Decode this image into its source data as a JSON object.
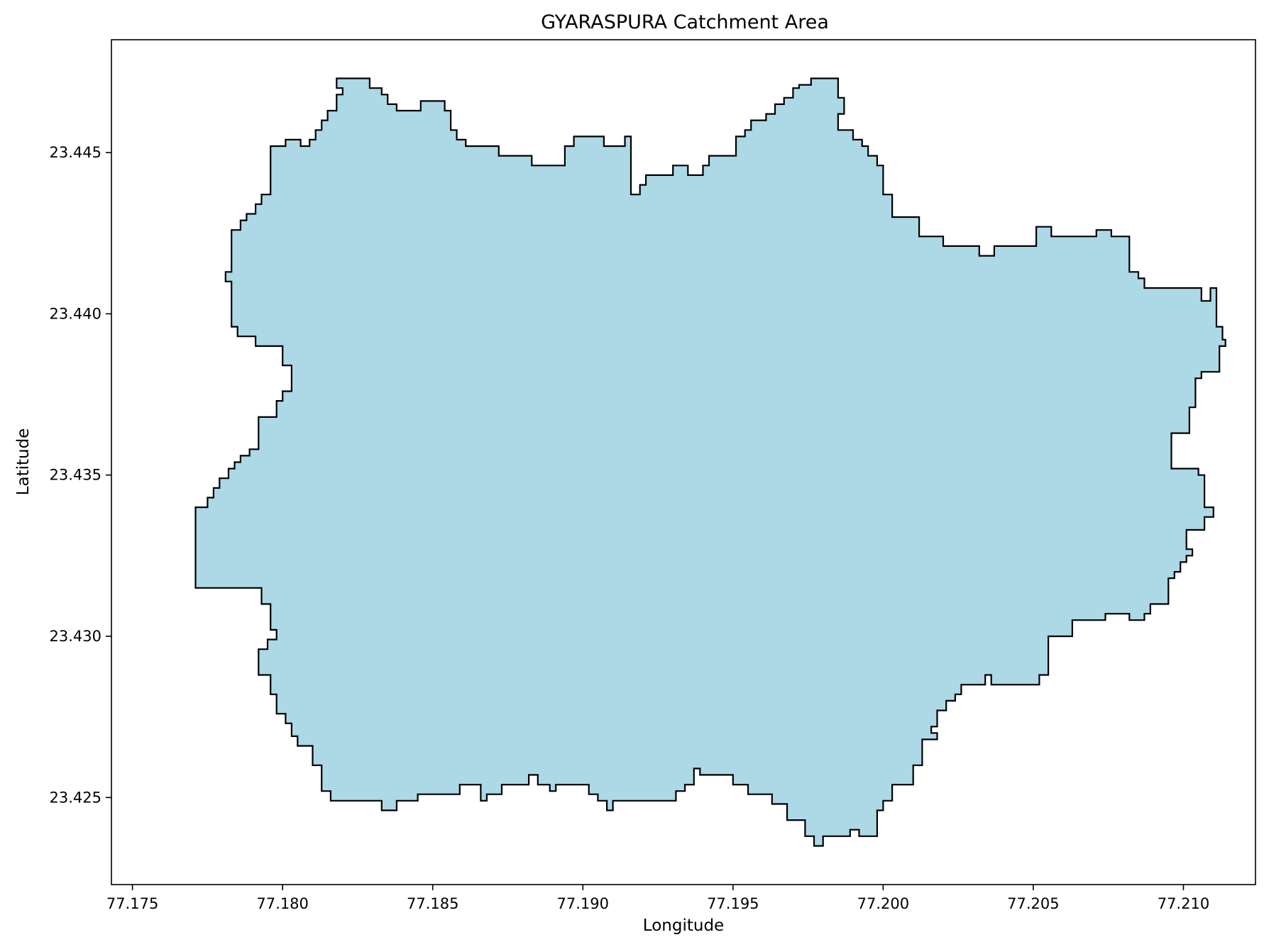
{
  "chart_data": {
    "type": "map",
    "title": "GYARASPURA Catchment Area",
    "xlabel": "Longitude",
    "ylabel": "Latitude",
    "xlim": [
      77.1743,
      77.2124
    ],
    "ylim": [
      23.4223,
      23.4485
    ],
    "x_ticks": [
      77.175,
      77.18,
      77.185,
      77.19,
      77.195,
      77.2,
      77.205,
      77.21
    ],
    "x_tick_labels": [
      "77.175",
      "77.180",
      "77.185",
      "77.190",
      "77.195",
      "77.200",
      "77.205",
      "77.210"
    ],
    "y_ticks": [
      23.425,
      23.43,
      23.435,
      23.44,
      23.445
    ],
    "y_tick_labels": [
      "23.425",
      "23.430",
      "23.435",
      "23.440",
      "23.445"
    ],
    "grid": false,
    "fill_color": "#add8e6",
    "edge_color": "#000000",
    "polygon": [
      [
        77.1818,
        23.4473
      ],
      [
        77.1829,
        23.4473
      ],
      [
        77.1829,
        23.447
      ],
      [
        77.1833,
        23.447
      ],
      [
        77.1833,
        23.4468
      ],
      [
        77.1835,
        23.4468
      ],
      [
        77.1835,
        23.4465
      ],
      [
        77.1838,
        23.4465
      ],
      [
        77.1838,
        23.4463
      ],
      [
        77.1846,
        23.4463
      ],
      [
        77.1846,
        23.4466
      ],
      [
        77.1854,
        23.4466
      ],
      [
        77.1854,
        23.4463
      ],
      [
        77.1856,
        23.4463
      ],
      [
        77.1856,
        23.4457
      ],
      [
        77.1858,
        23.4457
      ],
      [
        77.1858,
        23.4454
      ],
      [
        77.1861,
        23.4454
      ],
      [
        77.1861,
        23.4452
      ],
      [
        77.1872,
        23.4452
      ],
      [
        77.1872,
        23.4449
      ],
      [
        77.1883,
        23.4449
      ],
      [
        77.1883,
        23.4446
      ],
      [
        77.1894,
        23.4446
      ],
      [
        77.1894,
        23.4452
      ],
      [
        77.1897,
        23.4452
      ],
      [
        77.1897,
        23.4455
      ],
      [
        77.1907,
        23.4455
      ],
      [
        77.1907,
        23.4452
      ],
      [
        77.1914,
        23.4452
      ],
      [
        77.1914,
        23.4455
      ],
      [
        77.1916,
        23.4455
      ],
      [
        77.1916,
        23.4437
      ],
      [
        77.1919,
        23.4437
      ],
      [
        77.1919,
        23.444
      ],
      [
        77.1921,
        23.444
      ],
      [
        77.1921,
        23.4443
      ],
      [
        77.193,
        23.4443
      ],
      [
        77.193,
        23.4446
      ],
      [
        77.1935,
        23.4446
      ],
      [
        77.1935,
        23.4443
      ],
      [
        77.194,
        23.4443
      ],
      [
        77.194,
        23.4446
      ],
      [
        77.1942,
        23.4446
      ],
      [
        77.1942,
        23.4449
      ],
      [
        77.1951,
        23.4449
      ],
      [
        77.1951,
        23.4455
      ],
      [
        77.1954,
        23.4455
      ],
      [
        77.1954,
        23.4457
      ],
      [
        77.1956,
        23.4457
      ],
      [
        77.1956,
        23.446
      ],
      [
        77.1961,
        23.446
      ],
      [
        77.1961,
        23.4462
      ],
      [
        77.1964,
        23.4462
      ],
      [
        77.1964,
        23.4465
      ],
      [
        77.1967,
        23.4465
      ],
      [
        77.1967,
        23.4467
      ],
      [
        77.197,
        23.4467
      ],
      [
        77.197,
        23.447
      ],
      [
        77.1972,
        23.447
      ],
      [
        77.1972,
        23.4471
      ],
      [
        77.1976,
        23.4471
      ],
      [
        77.1976,
        23.4473
      ],
      [
        77.1985,
        23.4473
      ],
      [
        77.1985,
        23.4467
      ],
      [
        77.1987,
        23.4467
      ],
      [
        77.1987,
        23.4462
      ],
      [
        77.1985,
        23.4462
      ],
      [
        77.1985,
        23.4457
      ],
      [
        77.199,
        23.4457
      ],
      [
        77.199,
        23.4454
      ],
      [
        77.1993,
        23.4454
      ],
      [
        77.1993,
        23.4452
      ],
      [
        77.1995,
        23.4452
      ],
      [
        77.1995,
        23.4449
      ],
      [
        77.1998,
        23.4449
      ],
      [
        77.1998,
        23.4446
      ],
      [
        77.2,
        23.4446
      ],
      [
        77.2,
        23.4437
      ],
      [
        77.2003,
        23.4437
      ],
      [
        77.2003,
        23.443
      ],
      [
        77.2012,
        23.443
      ],
      [
        77.2012,
        23.4424
      ],
      [
        77.202,
        23.4424
      ],
      [
        77.202,
        23.4421
      ],
      [
        77.2032,
        23.4421
      ],
      [
        77.2032,
        23.4418
      ],
      [
        77.2037,
        23.4418
      ],
      [
        77.2037,
        23.4421
      ],
      [
        77.2051,
        23.4421
      ],
      [
        77.2051,
        23.4427
      ],
      [
        77.2056,
        23.4427
      ],
      [
        77.2056,
        23.4424
      ],
      [
        77.2071,
        23.4424
      ],
      [
        77.2071,
        23.4426
      ],
      [
        77.2076,
        23.4426
      ],
      [
        77.2076,
        23.4424
      ],
      [
        77.2082,
        23.4424
      ],
      [
        77.2082,
        23.4413
      ],
      [
        77.2085,
        23.4413
      ],
      [
        77.2085,
        23.4411
      ],
      [
        77.2087,
        23.4411
      ],
      [
        77.2087,
        23.4408
      ],
      [
        77.2106,
        23.4408
      ],
      [
        77.2106,
        23.4404
      ],
      [
        77.2109,
        23.4404
      ],
      [
        77.2109,
        23.4408
      ],
      [
        77.2111,
        23.4408
      ],
      [
        77.2111,
        23.4396
      ],
      [
        77.2113,
        23.4396
      ],
      [
        77.2113,
        23.4392
      ],
      [
        77.2114,
        23.4392
      ],
      [
        77.2114,
        23.439
      ],
      [
        77.2112,
        23.439
      ],
      [
        77.2112,
        23.4382
      ],
      [
        77.2106,
        23.4382
      ],
      [
        77.2106,
        23.438
      ],
      [
        77.2104,
        23.438
      ],
      [
        77.2104,
        23.4371
      ],
      [
        77.2102,
        23.4371
      ],
      [
        77.2102,
        23.4363
      ],
      [
        77.2096,
        23.4363
      ],
      [
        77.2096,
        23.4352
      ],
      [
        77.2105,
        23.4352
      ],
      [
        77.2105,
        23.435
      ],
      [
        77.2107,
        23.435
      ],
      [
        77.2107,
        23.434
      ],
      [
        77.211,
        23.434
      ],
      [
        77.211,
        23.4337
      ],
      [
        77.2107,
        23.4337
      ],
      [
        77.2107,
        23.4333
      ],
      [
        77.2101,
        23.4333
      ],
      [
        77.2101,
        23.4327
      ],
      [
        77.2103,
        23.4327
      ],
      [
        77.2103,
        23.4325
      ],
      [
        77.2101,
        23.4325
      ],
      [
        77.2101,
        23.4323
      ],
      [
        77.2099,
        23.4323
      ],
      [
        77.2099,
        23.432
      ],
      [
        77.2097,
        23.432
      ],
      [
        77.2097,
        23.4318
      ],
      [
        77.2095,
        23.4318
      ],
      [
        77.2095,
        23.431
      ],
      [
        77.2089,
        23.431
      ],
      [
        77.2089,
        23.4307
      ],
      [
        77.2087,
        23.4307
      ],
      [
        77.2087,
        23.4305
      ],
      [
        77.2082,
        23.4305
      ],
      [
        77.2082,
        23.4307
      ],
      [
        77.2074,
        23.4307
      ],
      [
        77.2074,
        23.4305
      ],
      [
        77.2063,
        23.4305
      ],
      [
        77.2063,
        23.43
      ],
      [
        77.2055,
        23.43
      ],
      [
        77.2055,
        23.4288
      ],
      [
        77.2052,
        23.4288
      ],
      [
        77.2052,
        23.4285
      ],
      [
        77.2036,
        23.4285
      ],
      [
        77.2036,
        23.4288
      ],
      [
        77.2034,
        23.4288
      ],
      [
        77.2034,
        23.4285
      ],
      [
        77.2026,
        23.4285
      ],
      [
        77.2026,
        23.4282
      ],
      [
        77.2024,
        23.4282
      ],
      [
        77.2024,
        23.428
      ],
      [
        77.2021,
        23.428
      ],
      [
        77.2021,
        23.4277
      ],
      [
        77.2018,
        23.4277
      ],
      [
        77.2018,
        23.4272
      ],
      [
        77.2016,
        23.4272
      ],
      [
        77.2016,
        23.427
      ],
      [
        77.2018,
        23.427
      ],
      [
        77.2018,
        23.4268
      ],
      [
        77.2013,
        23.4268
      ],
      [
        77.2013,
        23.426
      ],
      [
        77.201,
        23.426
      ],
      [
        77.201,
        23.4254
      ],
      [
        77.2003,
        23.4254
      ],
      [
        77.2003,
        23.4249
      ],
      [
        77.2,
        23.4249
      ],
      [
        77.2,
        23.4246
      ],
      [
        77.1998,
        23.4246
      ],
      [
        77.1998,
        23.4238
      ],
      [
        77.1992,
        23.4238
      ],
      [
        77.1992,
        23.424
      ],
      [
        77.1989,
        23.424
      ],
      [
        77.1989,
        23.4238
      ],
      [
        77.198,
        23.4238
      ],
      [
        77.198,
        23.4235
      ],
      [
        77.1977,
        23.4235
      ],
      [
        77.1977,
        23.4238
      ],
      [
        77.1974,
        23.4238
      ],
      [
        77.1974,
        23.4243
      ],
      [
        77.1968,
        23.4243
      ],
      [
        77.1968,
        23.4248
      ],
      [
        77.1963,
        23.4248
      ],
      [
        77.1963,
        23.4251
      ],
      [
        77.1955,
        23.4251
      ],
      [
        77.1955,
        23.4254
      ],
      [
        77.195,
        23.4254
      ],
      [
        77.195,
        23.4257
      ],
      [
        77.1939,
        23.4257
      ],
      [
        77.1939,
        23.4259
      ],
      [
        77.1937,
        23.4259
      ],
      [
        77.1937,
        23.4254
      ],
      [
        77.1934,
        23.4254
      ],
      [
        77.1934,
        23.4252
      ],
      [
        77.1931,
        23.4252
      ],
      [
        77.1931,
        23.4249
      ],
      [
        77.191,
        23.4249
      ],
      [
        77.191,
        23.4246
      ],
      [
        77.1908,
        23.4246
      ],
      [
        77.1908,
        23.4249
      ],
      [
        77.1905,
        23.4249
      ],
      [
        77.1905,
        23.4251
      ],
      [
        77.1902,
        23.4251
      ],
      [
        77.1902,
        23.4254
      ],
      [
        77.1891,
        23.4254
      ],
      [
        77.1891,
        23.4252
      ],
      [
        77.1889,
        23.4252
      ],
      [
        77.1889,
        23.4254
      ],
      [
        77.1885,
        23.4254
      ],
      [
        77.1885,
        23.4257
      ],
      [
        77.1882,
        23.4257
      ],
      [
        77.1882,
        23.4254
      ],
      [
        77.1873,
        23.4254
      ],
      [
        77.1873,
        23.4251
      ],
      [
        77.1868,
        23.4251
      ],
      [
        77.1868,
        23.4249
      ],
      [
        77.1866,
        23.4249
      ],
      [
        77.1866,
        23.4254
      ],
      [
        77.1859,
        23.4254
      ],
      [
        77.1859,
        23.4251
      ],
      [
        77.1845,
        23.4251
      ],
      [
        77.1845,
        23.4249
      ],
      [
        77.1838,
        23.4249
      ],
      [
        77.1838,
        23.4246
      ],
      [
        77.1833,
        23.4246
      ],
      [
        77.1833,
        23.4249
      ],
      [
        77.1816,
        23.4249
      ],
      [
        77.1816,
        23.4252
      ],
      [
        77.1813,
        23.4252
      ],
      [
        77.1813,
        23.426
      ],
      [
        77.181,
        23.426
      ],
      [
        77.181,
        23.4266
      ],
      [
        77.1805,
        23.4266
      ],
      [
        77.1805,
        23.4269
      ],
      [
        77.1803,
        23.4269
      ],
      [
        77.1803,
        23.4273
      ],
      [
        77.1801,
        23.4273
      ],
      [
        77.1801,
        23.4276
      ],
      [
        77.1798,
        23.4276
      ],
      [
        77.1798,
        23.4282
      ],
      [
        77.1796,
        23.4282
      ],
      [
        77.1796,
        23.4288
      ],
      [
        77.1792,
        23.4288
      ],
      [
        77.1792,
        23.4296
      ],
      [
        77.1795,
        23.4296
      ],
      [
        77.1795,
        23.4299
      ],
      [
        77.1798,
        23.4299
      ],
      [
        77.1798,
        23.4302
      ],
      [
        77.1796,
        23.4302
      ],
      [
        77.1796,
        23.431
      ],
      [
        77.1793,
        23.431
      ],
      [
        77.1793,
        23.4315
      ],
      [
        77.1771,
        23.4315
      ],
      [
        77.1771,
        23.434
      ],
      [
        77.1775,
        23.434
      ],
      [
        77.1775,
        23.4343
      ],
      [
        77.1777,
        23.4343
      ],
      [
        77.1777,
        23.4346
      ],
      [
        77.1779,
        23.4346
      ],
      [
        77.1779,
        23.4349
      ],
      [
        77.1782,
        23.4349
      ],
      [
        77.1782,
        23.4352
      ],
      [
        77.1784,
        23.4352
      ],
      [
        77.1784,
        23.4354
      ],
      [
        77.1786,
        23.4354
      ],
      [
        77.1786,
        23.4356
      ],
      [
        77.1789,
        23.4356
      ],
      [
        77.1789,
        23.4358
      ],
      [
        77.1792,
        23.4358
      ],
      [
        77.1792,
        23.4368
      ],
      [
        77.1798,
        23.4368
      ],
      [
        77.1798,
        23.4373
      ],
      [
        77.18,
        23.4373
      ],
      [
        77.18,
        23.4376
      ],
      [
        77.1803,
        23.4376
      ],
      [
        77.1803,
        23.4384
      ],
      [
        77.18,
        23.4384
      ],
      [
        77.18,
        23.439
      ],
      [
        77.1791,
        23.439
      ],
      [
        77.1791,
        23.4393
      ],
      [
        77.1785,
        23.4393
      ],
      [
        77.1785,
        23.4396
      ],
      [
        77.1783,
        23.4396
      ],
      [
        77.1783,
        23.441
      ],
      [
        77.1781,
        23.441
      ],
      [
        77.1781,
        23.4413
      ],
      [
        77.1783,
        23.4413
      ],
      [
        77.1783,
        23.4426
      ],
      [
        77.1786,
        23.4426
      ],
      [
        77.1786,
        23.4429
      ],
      [
        77.1788,
        23.4429
      ],
      [
        77.1788,
        23.4431
      ],
      [
        77.1791,
        23.4431
      ],
      [
        77.1791,
        23.4434
      ],
      [
        77.1793,
        23.4434
      ],
      [
        77.1793,
        23.4437
      ],
      [
        77.1796,
        23.4437
      ],
      [
        77.1796,
        23.4452
      ],
      [
        77.1801,
        23.4452
      ],
      [
        77.1801,
        23.4454
      ],
      [
        77.1806,
        23.4454
      ],
      [
        77.1806,
        23.4452
      ],
      [
        77.1809,
        23.4452
      ],
      [
        77.1809,
        23.4454
      ],
      [
        77.1811,
        23.4454
      ],
      [
        77.1811,
        23.4457
      ],
      [
        77.1813,
        23.4457
      ],
      [
        77.1813,
        23.446
      ],
      [
        77.1815,
        23.446
      ],
      [
        77.1815,
        23.4463
      ],
      [
        77.1818,
        23.4463
      ],
      [
        77.1818,
        23.4468
      ],
      [
        77.182,
        23.4468
      ],
      [
        77.182,
        23.447
      ],
      [
        77.1818,
        23.447
      ]
    ]
  }
}
